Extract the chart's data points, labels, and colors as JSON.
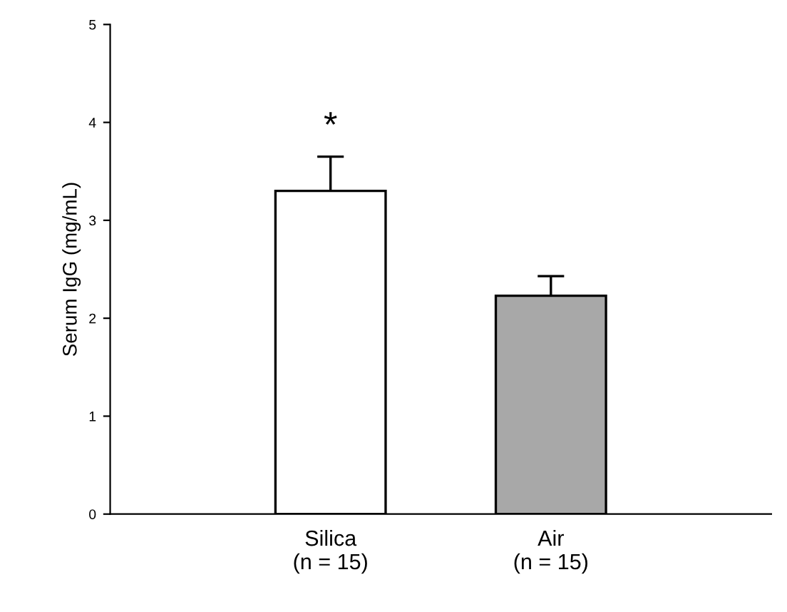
{
  "chart_data": {
    "type": "bar",
    "ylabel": "Serum IgG (mg/mL)",
    "categories": [
      "Silica\n(n = 15)",
      "Air\n(n = 15)"
    ],
    "values": [
      3.3,
      2.23
    ],
    "colors": [
      "#ffffff",
      "#a8a8a8"
    ],
    "errors": [
      [
        3.3,
        3.65
      ],
      [
        2.23,
        2.43
      ]
    ],
    "ylim": [
      0,
      5
    ],
    "yticks": [
      0,
      1,
      2,
      3,
      4,
      5
    ],
    "grid": false,
    "legend": false,
    "annotations": [
      "*"
    ]
  }
}
